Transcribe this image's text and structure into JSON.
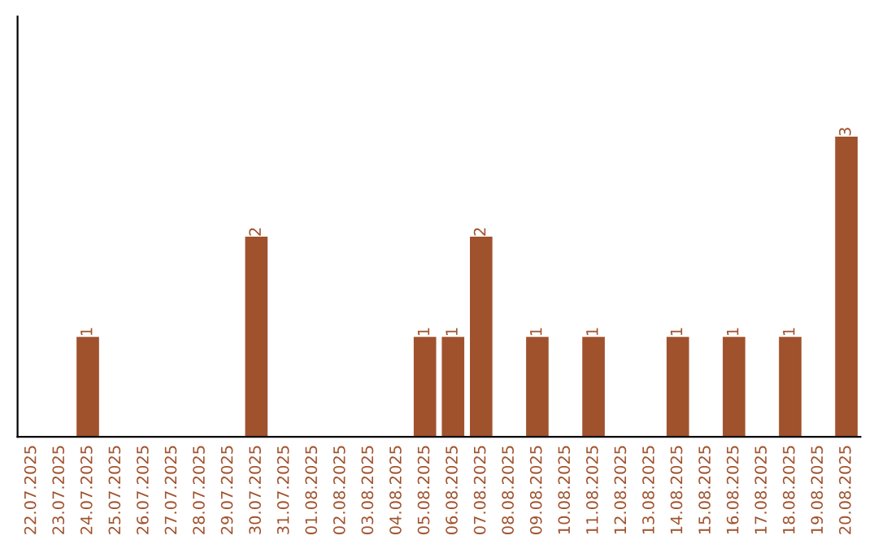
{
  "chart_data": {
    "type": "bar",
    "categories": [
      "22.07.2025",
      "23.07.2025",
      "24.07.2025",
      "25.07.2025",
      "26.07.2025",
      "27.07.2025",
      "28.07.2025",
      "29.07.2025",
      "30.07.2025",
      "31.07.2025",
      "01.08.2025",
      "02.08.2025",
      "03.08.2025",
      "04.08.2025",
      "05.08.2025",
      "06.08.2025",
      "07.08.2025",
      "08.08.2025",
      "09.08.2025",
      "10.08.2025",
      "11.08.2025",
      "12.08.2025",
      "13.08.2025",
      "14.08.2025",
      "15.08.2025",
      "16.08.2025",
      "17.08.2025",
      "18.08.2025",
      "19.08.2025",
      "20.08.2025"
    ],
    "values": [
      0,
      0,
      1,
      0,
      0,
      0,
      0,
      0,
      2,
      0,
      0,
      0,
      0,
      0,
      1,
      1,
      2,
      0,
      1,
      0,
      1,
      0,
      0,
      1,
      0,
      1,
      0,
      1,
      0,
      3
    ],
    "value_labels": [
      null,
      null,
      "1",
      null,
      null,
      null,
      null,
      null,
      "2",
      null,
      null,
      null,
      null,
      null,
      "1",
      "1",
      "2",
      null,
      "1",
      null,
      "1",
      null,
      null,
      "1",
      null,
      "1",
      null,
      "1",
      null,
      "3"
    ],
    "color": "#a0522d",
    "ylim": [
      0,
      4.2
    ],
    "tick_labels": "x",
    "grid": false,
    "legend": false
  }
}
